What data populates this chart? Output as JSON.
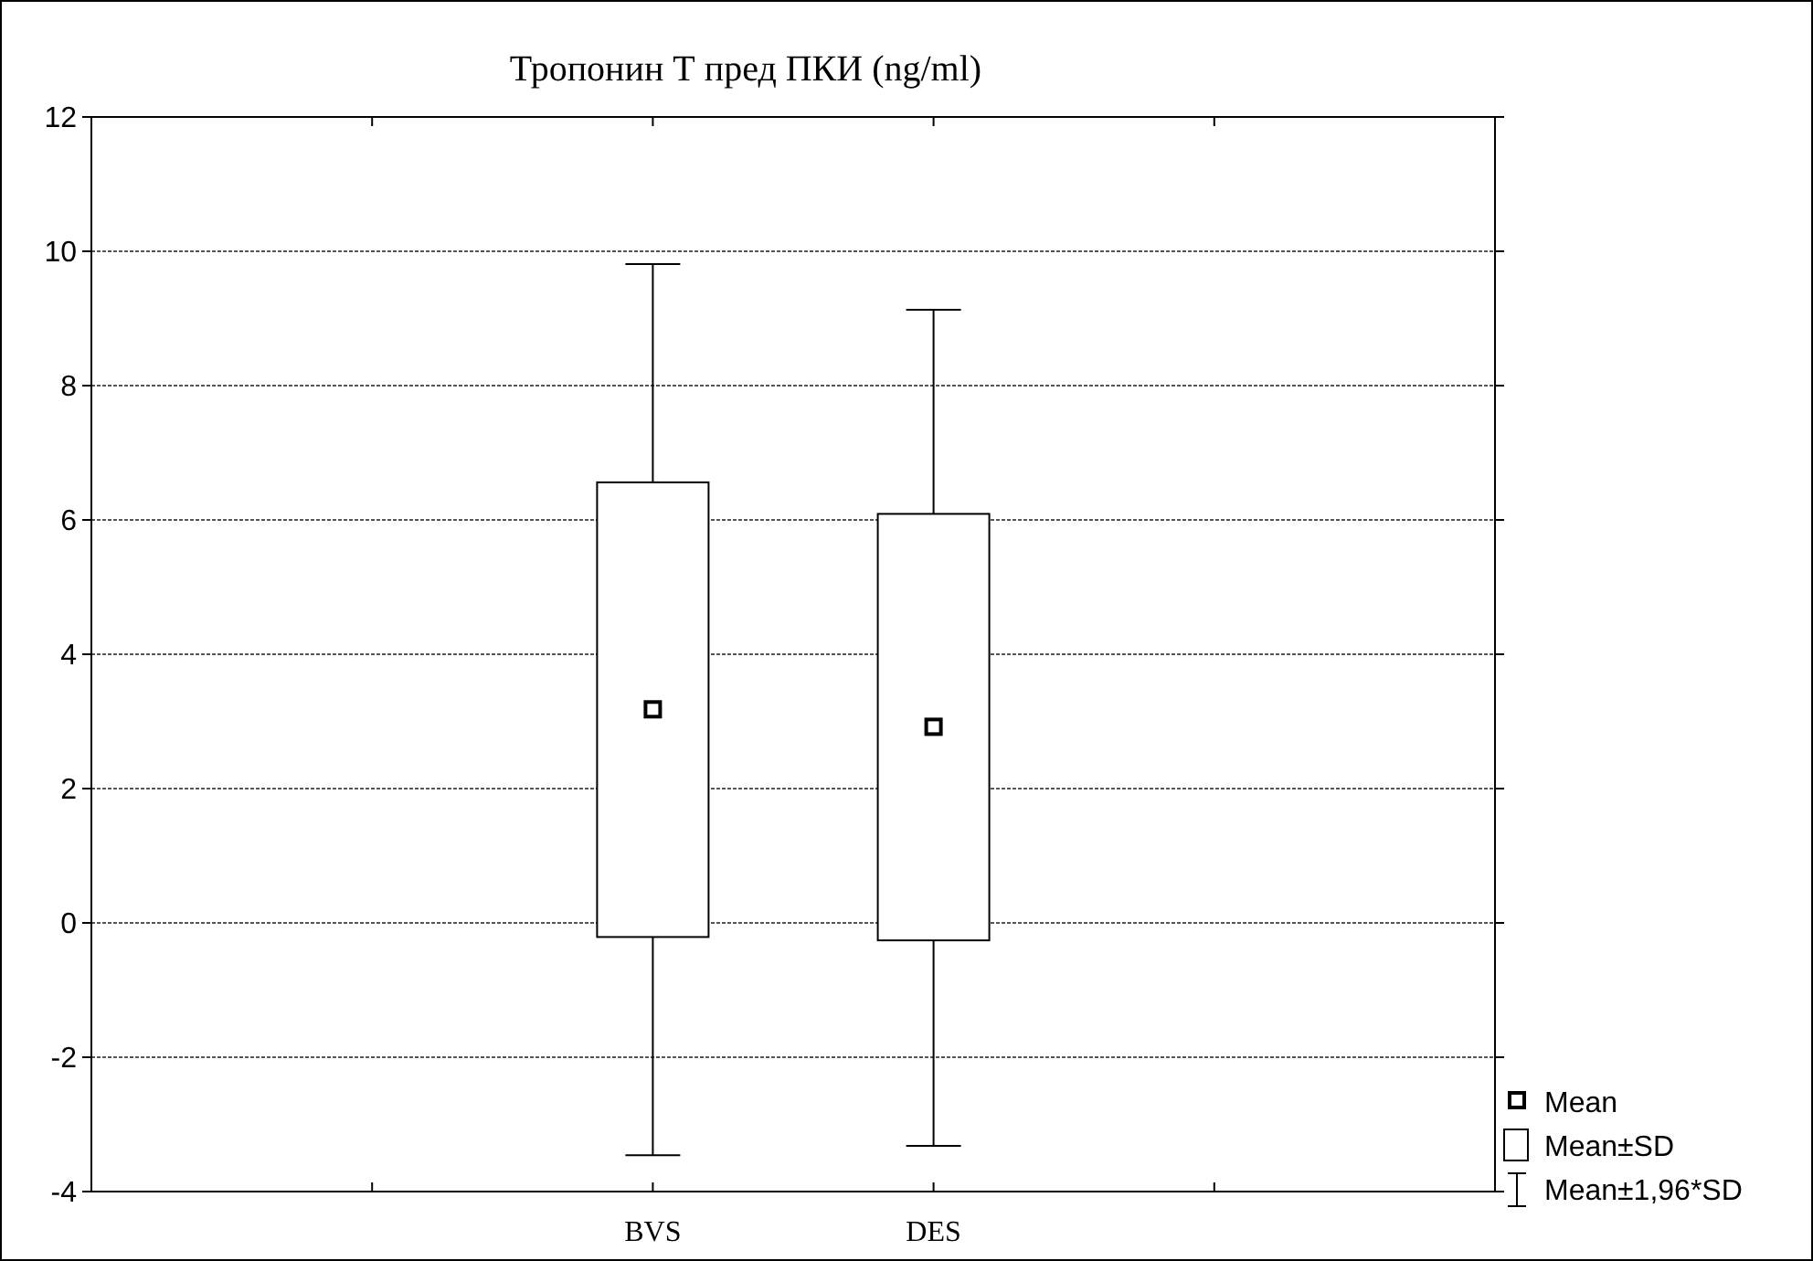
{
  "chart_data": {
    "type": "box",
    "title": "Тропонин Т пред ПКИ (ng/ml)",
    "categories": [
      "BVS",
      "DES"
    ],
    "boxes": [
      {
        "low": -3.46,
        "q1": -0.21,
        "median": 3.18,
        "q3": 6.56,
        "high": 9.81
      },
      {
        "low": -3.32,
        "q1": -0.26,
        "median": 2.92,
        "q3": 6.09,
        "high": 9.13
      }
    ],
    "ylim": [
      -4,
      12
    ],
    "yticks": [
      -4,
      -2,
      0,
      2,
      4,
      6,
      8,
      10,
      12
    ],
    "grid": "y",
    "annotations": [
      "Mean",
      "Mean±SD",
      "Mean±1,96*SD"
    ]
  }
}
